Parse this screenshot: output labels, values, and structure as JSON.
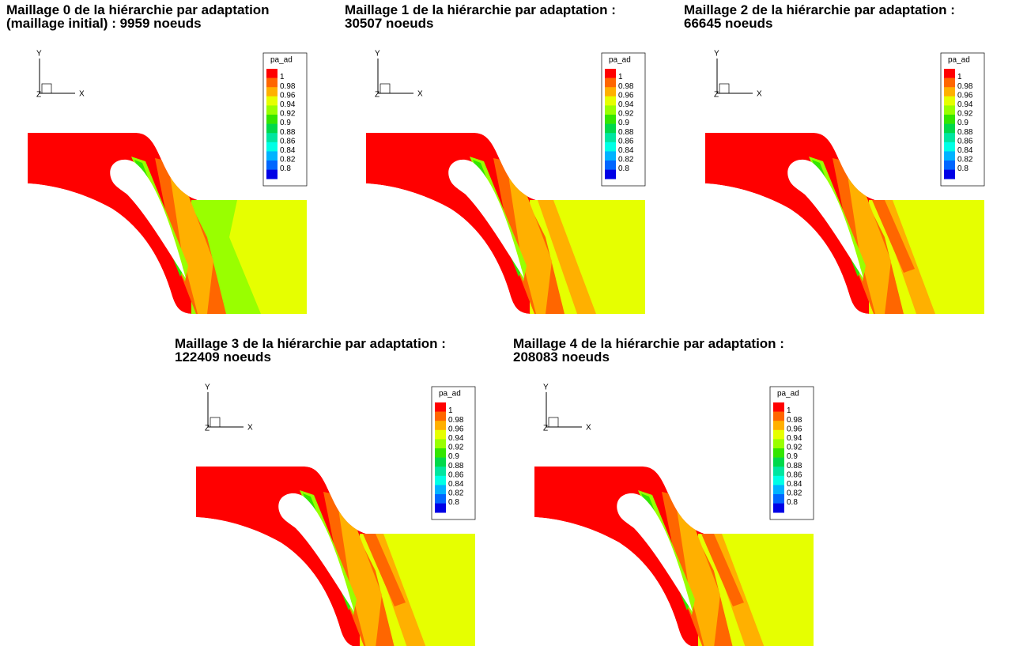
{
  "panels": [
    {
      "title": [
        "Maillage 0 de la hiérarchie par adaptation",
        "(maillage initial) : 9959 noeuds"
      ]
    },
    {
      "title": [
        "Maillage 1 de la hiérarchie par adaptation :",
        "30507 noeuds"
      ]
    },
    {
      "title": [
        "Maillage 2 de la hiérarchie par adaptation :",
        "66645 noeuds"
      ]
    },
    {
      "title": [
        "Maillage 3 de la hiérarchie par adaptation :",
        "122409 noeuds"
      ]
    },
    {
      "title": [
        "Maillage 4 de la hiérarchie par adaptation :",
        "208083 noeuds"
      ]
    }
  ],
  "legend": {
    "title": "pa_ad",
    "levels": [
      1,
      0.98,
      0.96,
      0.94,
      0.92,
      0.9,
      0.88,
      0.86,
      0.84,
      0.82,
      0.8
    ],
    "colors": [
      "#ff0000",
      "#ff6600",
      "#ffb000",
      "#e6ff00",
      "#99ff00",
      "#33e600",
      "#00d94a",
      "#00e6a0",
      "#00ffe6",
      "#00b3ff",
      "#0066ff",
      "#0000e6"
    ]
  },
  "axes": {
    "x": "X",
    "y": "Y",
    "z": "Z"
  }
}
